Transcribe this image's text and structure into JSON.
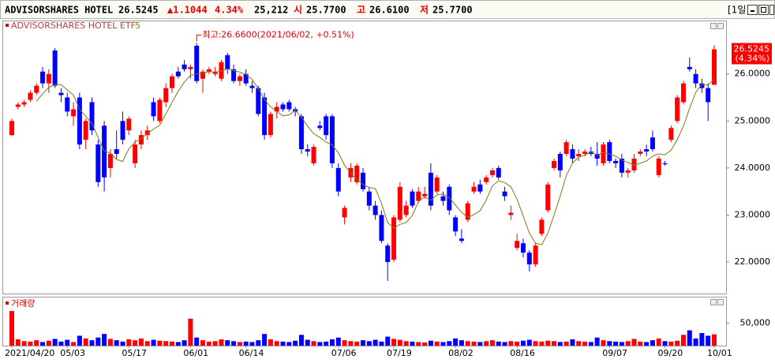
{
  "header": {
    "name": "ADVISORSHARES HOTEL",
    "price": "26.5245",
    "change": "▲1.1044",
    "change_pct": "4.34%",
    "volume": "25,212",
    "open_label": "시",
    "open": "25.7700",
    "high_label": "고",
    "high": "26.6100",
    "low_label": "저",
    "low": "25.7700",
    "period": "[1일]"
  },
  "chart_data": [
    {
      "type": "candlestick",
      "legend": "ADVISORSHARES HOTEL ETF",
      "annotation": "최고:26.6600(2021/06/02, +0.51%)",
      "last_change_label": "(4.34%)",
      "up_color": "#ff0000",
      "down_color": "#0000ff",
      "categories": [
        "2021/04/20",
        null,
        null,
        null,
        null,
        null,
        null,
        null,
        null,
        "05/03",
        null,
        null,
        null,
        null,
        null,
        null,
        null,
        null,
        null,
        "05/17",
        null,
        null,
        null,
        null,
        null,
        null,
        null,
        null,
        null,
        "06/01",
        null,
        null,
        null,
        null,
        null,
        null,
        null,
        null,
        "06/14",
        null,
        null,
        null,
        null,
        null,
        null,
        null,
        null,
        null,
        null,
        null,
        null,
        null,
        null,
        "07/06",
        null,
        null,
        null,
        null,
        null,
        null,
        null,
        null,
        "07/19",
        null,
        null,
        null,
        null,
        null,
        null,
        null,
        null,
        null,
        "08/02",
        null,
        null,
        null,
        null,
        null,
        null,
        null,
        null,
        null,
        "08/16",
        null,
        null,
        null,
        null,
        null,
        null,
        null,
        null,
        null,
        null,
        null,
        null,
        null,
        null,
        "09/07",
        null,
        null,
        null,
        null,
        null,
        null,
        null,
        null,
        "09/20",
        null,
        null,
        null,
        null,
        null,
        null,
        null,
        "10/01"
      ],
      "open": [
        24.7,
        25.3,
        25.35,
        25.45,
        25.6,
        26.05,
        25.8,
        26.5,
        25.6,
        25.5,
        25.1,
        25.5,
        24.6,
        25.4,
        24.5,
        24.9,
        24.0,
        24.4,
        25.0,
        24.8,
        24.1,
        24.5,
        24.7,
        25.4,
        25.0,
        25.4,
        25.7,
        26.05,
        26.2,
        26.1,
        26.6,
        25.9,
        26.05,
        26.0,
        25.9,
        26.4,
        26.1,
        25.85,
        26.0,
        25.75,
        25.7,
        25.5,
        24.7,
        25.2,
        25.35,
        25.4,
        25.25,
        25.1,
        24.4,
        24.1,
        24.9,
        25.1,
        25.1,
        24.0,
        22.95,
        23.8,
        23.7,
        23.9,
        23.5,
        23.2,
        23.0,
        22.35,
        22.05,
        22.9,
        23.0,
        23.5,
        23.3,
        23.4,
        23.9,
        23.5,
        23.4,
        23.6,
        22.95,
        22.5,
        22.9,
        23.5,
        23.65,
        23.7,
        23.85,
        24.0,
        23.5,
        23.0,
        22.3,
        22.4,
        22.2,
        21.95,
        22.6,
        23.1,
        24.0,
        24.3,
        24.3,
        24.4,
        24.25,
        24.3,
        24.35,
        24.3,
        24.1,
        24.55,
        24.15,
        24.2,
        23.9,
        23.95,
        24.3,
        24.4,
        24.65,
        23.85,
        24.1,
        24.6,
        25.0,
        25.4,
        26.15,
        26.0,
        25.8,
        25.7,
        25.77
      ],
      "high": [
        25.05,
        25.4,
        25.45,
        25.65,
        25.8,
        26.15,
        26.1,
        26.55,
        25.7,
        25.6,
        25.4,
        25.6,
        25.05,
        25.5,
        24.6,
        25.0,
        24.4,
        24.8,
        25.2,
        25.1,
        24.6,
        24.8,
        24.9,
        25.5,
        25.5,
        25.8,
        26.0,
        26.15,
        26.3,
        26.2,
        26.66,
        26.1,
        26.15,
        26.15,
        26.3,
        26.45,
        26.2,
        26.0,
        26.1,
        25.85,
        25.75,
        25.6,
        25.2,
        25.4,
        25.4,
        25.45,
        25.3,
        25.15,
        24.5,
        24.5,
        25.0,
        25.15,
        25.15,
        24.1,
        23.2,
        24.1,
        24.1,
        24.0,
        23.6,
        23.3,
        23.1,
        22.4,
        23.0,
        23.7,
        23.3,
        23.55,
        23.6,
        23.6,
        24.1,
        23.85,
        23.5,
        23.65,
        23.0,
        22.7,
        23.3,
        23.7,
        23.75,
        23.85,
        24.0,
        24.05,
        23.6,
        23.2,
        22.6,
        22.5,
        22.25,
        22.4,
        22.95,
        23.7,
        24.2,
        24.35,
        24.6,
        24.5,
        24.4,
        24.4,
        24.45,
        24.55,
        24.55,
        24.6,
        24.2,
        24.3,
        24.0,
        24.3,
        24.4,
        24.5,
        24.8,
        24.25,
        24.15,
        24.9,
        25.55,
        25.85,
        26.35,
        26.1,
        25.9,
        25.8,
        26.61
      ],
      "low": [
        24.68,
        25.25,
        25.3,
        25.4,
        25.55,
        25.7,
        25.6,
        25.7,
        25.4,
        25.1,
        24.9,
        24.4,
        24.4,
        24.7,
        23.6,
        23.5,
        23.8,
        24.2,
        24.5,
        24.7,
        24.0,
        24.4,
        24.6,
        25.0,
        24.95,
        25.3,
        25.6,
        25.9,
        26.05,
        25.9,
        25.8,
        25.6,
        26.0,
        25.95,
        25.85,
        26.0,
        25.8,
        25.75,
        25.75,
        25.6,
        25.1,
        24.6,
        24.65,
        25.05,
        25.2,
        25.2,
        25.1,
        24.3,
        24.25,
        24.05,
        24.8,
        24.6,
        24.0,
        23.4,
        22.8,
        23.7,
        23.65,
        23.5,
        23.1,
        22.9,
        22.4,
        21.6,
        22.0,
        22.85,
        22.95,
        23.15,
        23.25,
        23.35,
        23.1,
        23.45,
        23.2,
        23.0,
        22.55,
        22.4,
        22.85,
        23.45,
        23.45,
        23.65,
        23.8,
        23.75,
        23.3,
        22.9,
        22.25,
        22.1,
        21.8,
        21.9,
        22.55,
        23.05,
        23.95,
        23.8,
        24.25,
        24.1,
        24.15,
        24.25,
        24.25,
        24.05,
        24.05,
        24.1,
        24.0,
        23.8,
        23.8,
        23.9,
        24.25,
        24.25,
        24.35,
        23.8,
        24.05,
        24.55,
        24.95,
        25.35,
        26.05,
        25.7,
        25.6,
        25.0,
        25.77
      ],
      "close": [
        25.0,
        25.35,
        25.4,
        25.6,
        25.75,
        25.8,
        26.0,
        25.75,
        25.55,
        25.2,
        25.25,
        24.5,
        25.0,
        24.8,
        23.7,
        23.8,
        24.3,
        24.3,
        24.6,
        25.05,
        24.5,
        24.7,
        24.8,
        25.1,
        25.45,
        25.7,
        25.95,
        25.95,
        26.1,
        26.15,
        25.85,
        26.05,
        26.1,
        26.05,
        26.25,
        26.1,
        25.85,
        25.95,
        25.8,
        25.7,
        25.15,
        24.7,
        25.15,
        25.3,
        25.25,
        25.25,
        25.2,
        24.4,
        24.35,
        24.45,
        24.85,
        24.7,
        24.1,
        23.5,
        23.15,
        24.0,
        24.05,
        23.55,
        23.2,
        23.0,
        22.45,
        22.0,
        22.95,
        23.6,
        23.2,
        23.2,
        23.5,
        23.45,
        23.2,
        23.8,
        23.3,
        23.1,
        22.65,
        22.45,
        23.25,
        23.6,
        23.5,
        23.8,
        23.95,
        23.8,
        23.4,
        23.05,
        22.45,
        22.2,
        21.95,
        22.35,
        22.9,
        23.65,
        24.15,
        23.95,
        24.55,
        24.2,
        24.3,
        24.35,
        24.3,
        24.2,
        24.5,
        24.15,
        24.1,
        23.9,
        23.95,
        24.2,
        24.35,
        24.35,
        24.4,
        24.2,
        24.08,
        24.85,
        25.5,
        25.8,
        26.1,
        25.8,
        25.7,
        25.4,
        26.5245
      ],
      "ma": {
        "name": "5",
        "color": "#7a7a1a",
        "values": [
          null,
          null,
          null,
          null,
          25.42,
          25.58,
          25.71,
          25.78,
          25.77,
          25.66,
          25.55,
          25.25,
          25.1,
          24.95,
          24.65,
          24.36,
          24.32,
          24.18,
          24.14,
          24.41,
          24.55,
          24.63,
          24.73,
          24.83,
          24.91,
          25.15,
          25.4,
          25.63,
          25.83,
          25.97,
          26.0,
          26.02,
          26.05,
          26.04,
          26.06,
          26.11,
          26.07,
          26.04,
          25.99,
          25.88,
          25.69,
          25.46,
          25.3,
          25.2,
          25.11,
          25.13,
          25.23,
          25.08,
          24.89,
          24.73,
          24.65,
          24.55,
          24.49,
          24.32,
          24.06,
          23.89,
          23.76,
          23.65,
          23.59,
          23.56,
          23.25,
          22.84,
          22.72,
          22.8,
          22.84,
          22.99,
          23.29,
          23.39,
          23.31,
          23.43,
          23.45,
          23.37,
          23.21,
          23.06,
          22.95,
          23.01,
          23.09,
          23.32,
          23.62,
          23.73,
          23.69,
          23.6,
          23.33,
          22.98,
          22.61,
          22.4,
          22.37,
          22.61,
          23.0,
          23.4,
          23.84,
          24.1,
          24.23,
          24.27,
          24.34,
          24.27,
          24.33,
          24.3,
          24.25,
          24.17,
          24.12,
          24.06,
          24.1,
          24.15,
          24.25,
          24.3,
          24.28,
          24.38,
          24.61,
          24.89,
          25.27,
          25.61,
          25.78,
          25.76,
          25.9
        ]
      },
      "ylim": [
        21.33,
        27.12
      ],
      "yticks": [
        {
          "value": 22,
          "label": "22.0000"
        },
        {
          "value": 23,
          "label": "23.0000"
        },
        {
          "value": 24,
          "label": "24.0000"
        },
        {
          "value": 25,
          "label": "25.0000"
        },
        {
          "value": 26,
          "label": "26.0000"
        }
      ]
    },
    {
      "type": "bar",
      "title": "거래량",
      "up_color": "#ff0000",
      "down_color": "#0000ff",
      "values": [
        77000,
        14000,
        10000,
        9000,
        12000,
        8000,
        11000,
        15000,
        9000,
        13000,
        8000,
        22000,
        16000,
        12000,
        18000,
        26000,
        15000,
        12000,
        9000,
        14000,
        12000,
        16000,
        10000,
        13000,
        11000,
        10000,
        9000,
        8000,
        12000,
        60000,
        18000,
        12000,
        9000,
        10000,
        14000,
        12000,
        10000,
        8000,
        9000,
        8000,
        12000,
        26000,
        14000,
        10000,
        9000,
        8000,
        11000,
        24000,
        13000,
        10000,
        8000,
        9000,
        14000,
        18000,
        12000,
        10000,
        9000,
        12000,
        10000,
        13000,
        9000,
        20000,
        15000,
        13000,
        10000,
        9000,
        8000,
        7000,
        11000,
        9000,
        8000,
        10000,
        16000,
        12000,
        10000,
        9000,
        8000,
        10000,
        12000,
        9000,
        8000,
        10000,
        9000,
        11000,
        13000,
        10000,
        9000,
        11000,
        10000,
        8000,
        9000,
        14000,
        10000,
        9000,
        8000,
        18000,
        12000,
        10000,
        9000,
        8000,
        10000,
        15000,
        9000,
        8000,
        12000,
        16000,
        10000,
        9000,
        11000,
        24000,
        34000,
        16000,
        28000,
        22000,
        25212
      ],
      "ylim": [
        0,
        107000
      ],
      "yticks": [
        {
          "value": 50000,
          "label": "50,000"
        }
      ]
    }
  ]
}
